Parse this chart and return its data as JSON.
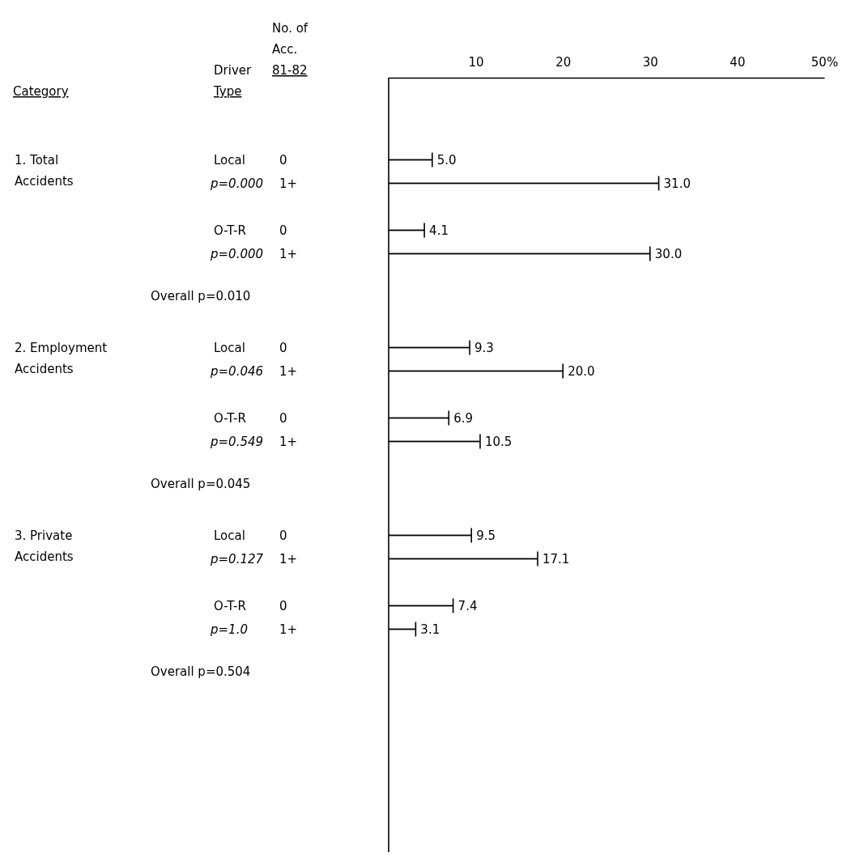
{
  "chart_data": {
    "type": "bar",
    "orientation": "horizontal",
    "categories": [
      null,
      null,
      null,
      null,
      null,
      null,
      null,
      null,
      null,
      null,
      null,
      null,
      null,
      null,
      null,
      null,
      null,
      null,
      null,
      null,
      null,
      null,
      null,
      null,
      null,
      null,
      null,
      null,
      null,
      null,
      null,
      null,
      null
    ],
    "values": [
      null,
      null,
      null,
      5.0,
      31.0,
      null,
      4.1,
      30.0,
      null,
      null,
      null,
      9.3,
      20.0,
      null,
      6.9,
      10.5,
      null,
      null,
      null,
      9.5,
      17.1,
      null,
      7.4,
      3.1,
      null,
      null,
      null,
      null,
      null,
      null,
      null,
      null,
      null
    ],
    "color": "#000000",
    "value_labels": [
      null,
      null,
      null,
      "5.0",
      "31.0",
      null,
      "4.1",
      "30.0",
      null,
      null,
      null,
      "9.3",
      "20.0",
      null,
      "6.9",
      "10.5",
      null,
      null,
      null,
      "9.5",
      "17.1",
      null,
      "7.4",
      "3.1",
      null,
      null,
      null,
      null,
      null,
      null,
      null,
      null,
      null
    ],
    "xlim": [
      0,
      50
    ],
    "xticks": [
      10,
      20,
      30,
      40,
      {
        "value": 50,
        "label": "50%"
      }
    ],
    "annotations": [
      "Category",
      "Driver Type",
      "No. of Acc. 81-82",
      "1. Total Accidents",
      "Local",
      "p=0.000",
      "O-T-R",
      "p=0.000",
      "Overall p=0.010",
      "2. Employment Accidents",
      "Local",
      "p=0.046",
      "O-T-R",
      "p=0.549",
      "Overall p=0.045",
      "3. Private Accidents",
      "Local",
      "p=0.127",
      "O-T-R",
      "p=1.0",
      "Overall p=0.504",
      "0",
      "1+",
      "0",
      "1+",
      "0",
      "1+",
      "0",
      "1+",
      "0",
      "1+",
      "0",
      "1+"
    ]
  }
}
